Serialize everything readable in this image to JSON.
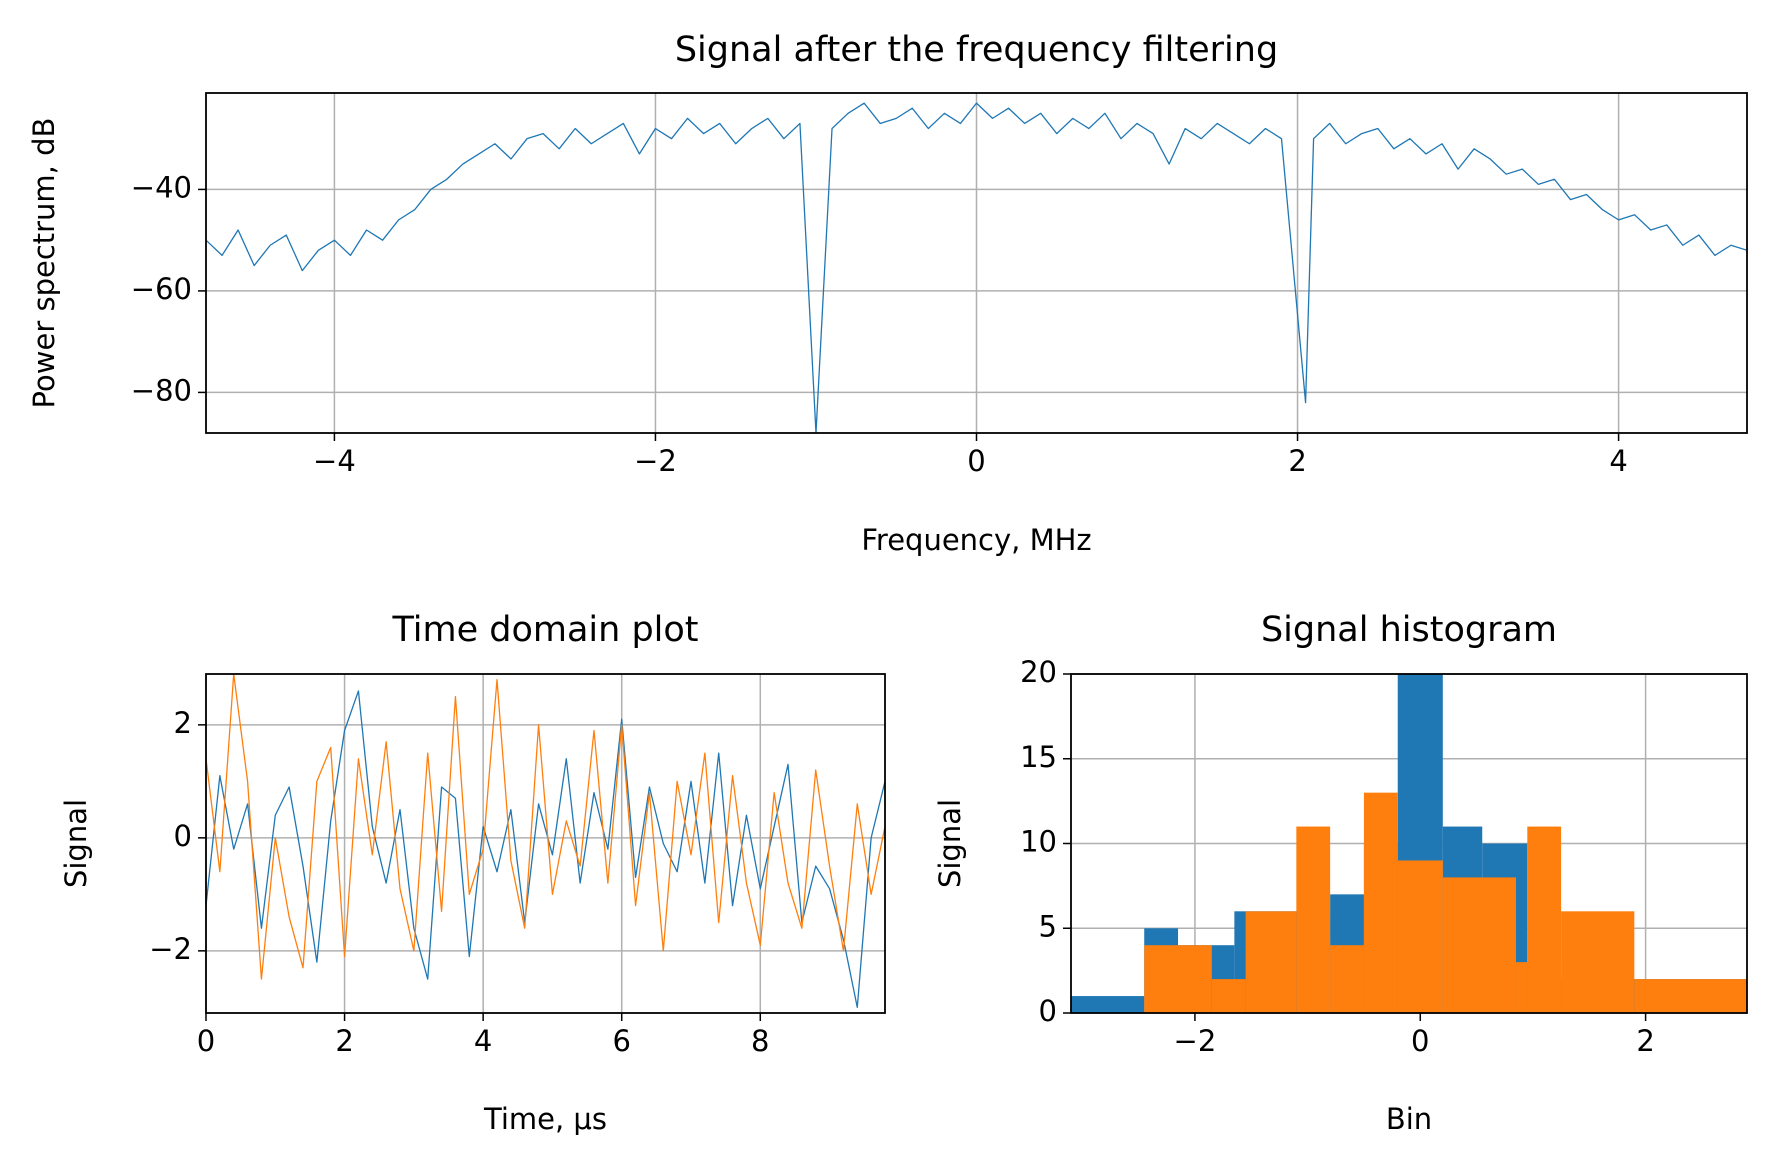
{
  "chart_data": [
    {
      "type": "line",
      "title": "Signal after the frequency filtering",
      "xlabel": "Frequency, MHz",
      "ylabel": "Power spectrum, dB",
      "xlim": [
        -4.8,
        4.8
      ],
      "ylim": [
        -88,
        -21
      ],
      "xticks": [
        {
          "value": -4,
          "label": "−4"
        },
        {
          "value": -2,
          "label": "−2"
        },
        0,
        2,
        4
      ],
      "yticks": [
        {
          "value": -40,
          "label": "−40"
        },
        {
          "value": -60,
          "label": "−60"
        },
        {
          "value": -80,
          "label": "−80"
        }
      ],
      "grid": true,
      "x": [
        -4.8,
        -4.7,
        -4.6,
        -4.5,
        -4.4,
        -4.3,
        -4.2,
        -4.1,
        -4.0,
        -3.9,
        -3.8,
        -3.7,
        -3.6,
        -3.5,
        -3.4,
        -3.3,
        -3.2,
        -3.1,
        -3.0,
        -2.9,
        -2.8,
        -2.7,
        -2.6,
        -2.5,
        -2.4,
        -2.3,
        -2.2,
        -2.1,
        -2.0,
        -1.9,
        -1.8,
        -1.7,
        -1.6,
        -1.5,
        -1.4,
        -1.3,
        -1.2,
        -1.1,
        -1.0,
        -0.9,
        -0.8,
        -0.7,
        -0.6,
        -0.5,
        -0.4,
        -0.3,
        -0.2,
        -0.1,
        0.0,
        0.1,
        0.2,
        0.3,
        0.4,
        0.5,
        0.6,
        0.7,
        0.8,
        0.9,
        1.0,
        1.1,
        1.2,
        1.3,
        1.4,
        1.5,
        1.6,
        1.7,
        1.8,
        1.9,
        2.05,
        2.1,
        2.2,
        2.3,
        2.4,
        2.5,
        2.6,
        2.7,
        2.8,
        2.9,
        3.0,
        3.1,
        3.2,
        3.3,
        3.4,
        3.5,
        3.6,
        3.7,
        3.8,
        3.9,
        4.0,
        4.1,
        4.2,
        4.3,
        4.4,
        4.5,
        4.6,
        4.7,
        4.8
      ],
      "series": [
        {
          "color": "#1f77b4",
          "values": [
            -50,
            -53,
            -48,
            -55,
            -51,
            -49,
            -56,
            -52,
            -50,
            -53,
            -48,
            -50,
            -46,
            -44,
            -40,
            -38,
            -35,
            -33,
            -31,
            -34,
            -30,
            -29,
            -32,
            -28,
            -31,
            -29,
            -27,
            -33,
            -28,
            -30,
            -26,
            -29,
            -27,
            -31,
            -28,
            -26,
            -30,
            -27,
            -88,
            -28,
            -25,
            -23,
            -27,
            -26,
            -24,
            -28,
            -25,
            -27,
            -23,
            -26,
            -24,
            -27,
            -25,
            -29,
            -26,
            -28,
            -25,
            -30,
            -27,
            -29,
            -35,
            -28,
            -30,
            -27,
            -29,
            -31,
            -28,
            -30,
            -82,
            -30,
            -27,
            -31,
            -29,
            -28,
            -32,
            -30,
            -33,
            -31,
            -36,
            -32,
            -34,
            -37,
            -36,
            -39,
            -38,
            -42,
            -41,
            -44,
            -46,
            -45,
            -48,
            -47,
            -51,
            -49,
            -53,
            -51,
            -52
          ]
        }
      ]
    },
    {
      "type": "line",
      "title": "Time domain plot",
      "xlabel": "Time, μs",
      "ylabel": "Signal",
      "xlim": [
        0,
        9.8
      ],
      "ylim": [
        -3.1,
        2.9
      ],
      "xticks": [
        0,
        2,
        4,
        6,
        8
      ],
      "yticks": [
        {
          "value": -2,
          "label": "−2"
        },
        0,
        2
      ],
      "grid": true,
      "x": [
        0,
        0.2,
        0.4,
        0.6,
        0.8,
        1.0,
        1.2,
        1.4,
        1.6,
        1.8,
        2.0,
        2.2,
        2.4,
        2.6,
        2.8,
        3.0,
        3.2,
        3.4,
        3.6,
        3.8,
        4.0,
        4.2,
        4.4,
        4.6,
        4.8,
        5.0,
        5.2,
        5.4,
        5.6,
        5.8,
        6.0,
        6.2,
        6.4,
        6.6,
        6.8,
        7.0,
        7.2,
        7.4,
        7.6,
        7.8,
        8.0,
        8.2,
        8.4,
        8.6,
        8.8,
        9.0,
        9.2,
        9.4,
        9.6,
        9.8
      ],
      "series": [
        {
          "color": "#1f77b4",
          "values": [
            -1.2,
            1.1,
            -0.2,
            0.6,
            -1.6,
            0.4,
            0.9,
            -0.5,
            -2.2,
            0.3,
            1.9,
            2.6,
            0.2,
            -0.8,
            0.5,
            -1.6,
            -2.5,
            0.9,
            0.7,
            -2.1,
            0.2,
            -0.6,
            0.5,
            -1.5,
            0.6,
            -0.3,
            1.4,
            -0.8,
            0.8,
            -0.2,
            2.1,
            -0.7,
            0.9,
            -0.1,
            -0.6,
            1.0,
            -0.8,
            1.5,
            -1.2,
            0.4,
            -0.9,
            0.2,
            1.3,
            -1.5,
            -0.5,
            -0.9,
            -1.8,
            -3.0,
            0.0,
            1.0
          ]
        },
        {
          "color": "#ff7f0e",
          "values": [
            1.4,
            -0.6,
            2.9,
            1.0,
            -2.5,
            0.0,
            -1.4,
            -2.3,
            1.0,
            1.6,
            -2.1,
            1.4,
            -0.3,
            1.7,
            -0.9,
            -2.0,
            1.5,
            -1.3,
            2.5,
            -1.0,
            -0.2,
            2.8,
            -0.4,
            -1.6,
            2.0,
            -1.0,
            0.3,
            -0.5,
            1.9,
            -0.8,
            2.0,
            -1.2,
            0.8,
            -2.0,
            1.0,
            -0.3,
            1.5,
            -1.5,
            1.1,
            -0.8,
            -1.9,
            0.8,
            -0.8,
            -1.6,
            1.2,
            -0.5,
            -2.0,
            0.6,
            -1.0,
            0.2
          ]
        }
      ]
    },
    {
      "type": "histogram",
      "title": "Signal histogram",
      "xlabel": "Bin",
      "ylabel": "Signal",
      "xlim": [
        -3.1,
        2.9
      ],
      "ylim": [
        0,
        20
      ],
      "xticks": [
        {
          "value": -2,
          "label": "−2"
        },
        0,
        2
      ],
      "yticks": [
        0,
        5,
        10,
        15,
        20
      ],
      "grid": true,
      "series": [
        {
          "color": "#1f77b4",
          "bins": [
            -3.1,
            -2.45,
            -2.15,
            -1.65,
            -1.45,
            -0.8,
            -0.5,
            -0.2,
            0.2,
            0.55,
            0.95,
            1.25,
            2.9
          ],
          "values": [
            1,
            5,
            4,
            6,
            6,
            7,
            10,
            20,
            11,
            10,
            3,
            2
          ]
        },
        {
          "color": "#ff7f0e",
          "bins": [
            -2.45,
            -1.85,
            -1.55,
            -1.1,
            -0.8,
            -0.5,
            -0.2,
            0.2,
            0.85,
            0.95,
            1.25,
            1.9,
            2.9
          ],
          "values": [
            4,
            2,
            6,
            11,
            4,
            13,
            9,
            8,
            3,
            11,
            6,
            2
          ]
        }
      ]
    }
  ]
}
